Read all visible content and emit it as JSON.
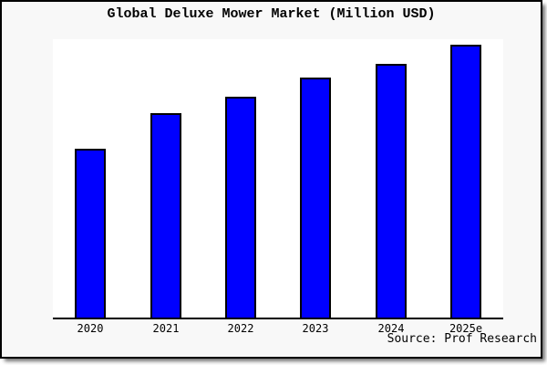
{
  "window": {
    "title": "Global Deluxe Mower Market (Million USD)"
  },
  "chart_data": {
    "type": "bar",
    "title": "Global Deluxe Mower Market (Million USD)",
    "categories": [
      "2020",
      "2021",
      "2022",
      "2023",
      "2024",
      "2025e"
    ],
    "values": [
      62,
      75,
      81,
      88,
      93,
      100
    ],
    "values_note": "No y-axis or data labels shown; values are relative bar heights with 2025e = 100",
    "xlabel": "",
    "ylabel": "",
    "grid": false,
    "legend": false,
    "source": "Source: Prof Research",
    "bar_color": "#0000ff",
    "bar_border_color": "#000000"
  },
  "colors": {
    "card_background": "#f8f8f8",
    "plot_background": "#ffffff",
    "frame": "#000000",
    "axis": "#000000",
    "text": "#000000",
    "bar_fill": "#0000ff"
  }
}
